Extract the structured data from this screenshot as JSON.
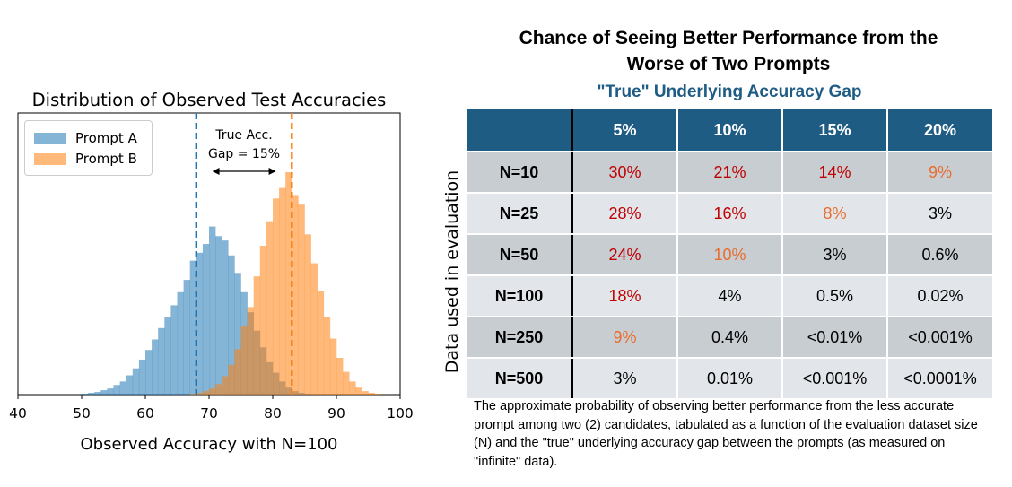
{
  "chart_data": [
    {
      "type": "histogram",
      "title": "Distribution of Observed Test Accuracies",
      "xlabel": "Observed Accuracy with N=100",
      "ylabel": "",
      "xlim": [
        40,
        100
      ],
      "x_ticks": [
        "40",
        "50",
        "60",
        "70",
        "80",
        "90",
        "100"
      ],
      "y_ticks_shown": false,
      "bin_width": 1,
      "series": [
        {
          "name": "Prompt A",
          "color": "#1f77b4",
          "mean_line": 68,
          "bins_start": 50,
          "counts": [
            1,
            2,
            3,
            5,
            7,
            11,
            15,
            22,
            30,
            40,
            51,
            63,
            76,
            88,
            102,
            117,
            131,
            153,
            162,
            172,
            192,
            181,
            176,
            159,
            139,
            117,
            94,
            73,
            54,
            37,
            25,
            15,
            8,
            4,
            2,
            1
          ]
        },
        {
          "name": "Prompt B",
          "color": "#ff7f0e",
          "mean_line": 83,
          "bins_start": 67,
          "counts": [
            1,
            2,
            4,
            7,
            12,
            21,
            34,
            52,
            78,
            100,
            135,
            170,
            198,
            224,
            236,
            254,
            228,
            217,
            183,
            150,
            118,
            89,
            64,
            42,
            26,
            15,
            8,
            4,
            2,
            1
          ]
        }
      ],
      "annotations": [
        {
          "text_line1": "True Acc.",
          "text_line2": "Gap = 15%",
          "arrow_from": 70.5,
          "arrow_to": 80.5
        }
      ]
    },
    {
      "type": "table",
      "title_line1": "Chance of Seeing Better Performance from the",
      "title_line2": "Worse of Two Prompts",
      "column_group_label": "\"True\" Underlying Accuracy Gap",
      "row_group_label": "Data used in evaluation",
      "columns": [
        "5%",
        "10%",
        "15%",
        "20%"
      ],
      "rows": [
        {
          "label": "N=10",
          "values": [
            "30%",
            "21%",
            "14%",
            "9%"
          ],
          "colors": [
            "red",
            "red",
            "red",
            "orange"
          ]
        },
        {
          "label": "N=25",
          "values": [
            "28%",
            "16%",
            "8%",
            "3%"
          ],
          "colors": [
            "red",
            "red",
            "orange",
            "black"
          ]
        },
        {
          "label": "N=50",
          "values": [
            "24%",
            "10%",
            "3%",
            "0.6%"
          ],
          "colors": [
            "red",
            "orange",
            "black",
            "black"
          ]
        },
        {
          "label": "N=100",
          "values": [
            "18%",
            "4%",
            "0.5%",
            "0.02%"
          ],
          "colors": [
            "red",
            "black",
            "black",
            "black"
          ]
        },
        {
          "label": "N=250",
          "values": [
            "9%",
            "0.4%",
            "<0.01%",
            "<0.001%"
          ],
          "colors": [
            "orange",
            "black",
            "black",
            "black"
          ]
        },
        {
          "label": "N=500",
          "values": [
            "3%",
            "0.01%",
            "<0.001%",
            "<0.0001%"
          ],
          "colors": [
            "black",
            "black",
            "black",
            "black"
          ]
        }
      ],
      "caption": "The approximate probability of observing better performance from the less accurate prompt among two (2) candidates,  tabulated as a function of the evaluation dataset size (N) and the \"true\" underlying accuracy gap between the prompts (as measured on \"infinite\" data)."
    }
  ],
  "colors": {
    "header_bg": "#1f5c84",
    "row_dark": "#c8cdd2",
    "row_light": "#e2e6ea",
    "red": "#c00000",
    "orange": "#e86c2c",
    "black": "#000000"
  }
}
